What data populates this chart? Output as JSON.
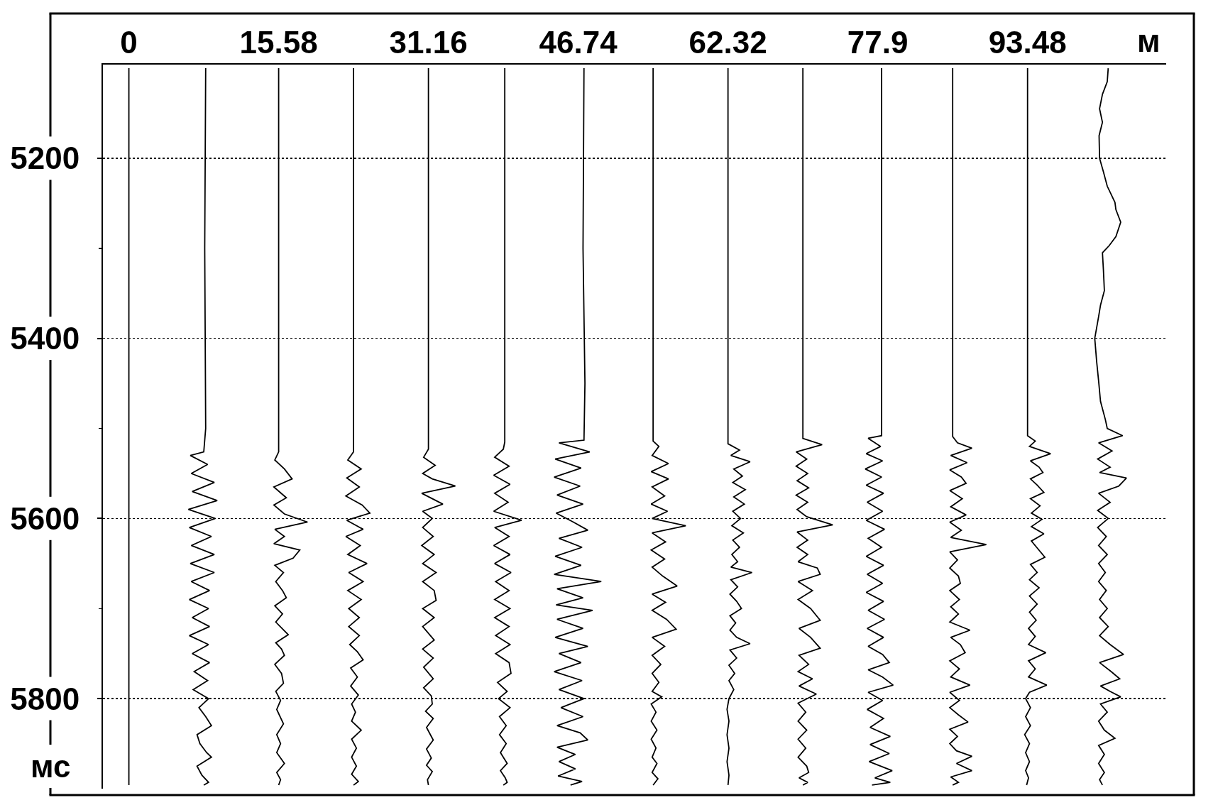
{
  "chart_data": {
    "type": "line",
    "xlabel": "м",
    "ylabel": "мс",
    "xlim": [
      -2.7,
      107.9
    ],
    "ylim": [
      5900,
      5096
    ],
    "xticks": [
      0,
      15.58,
      31.16,
      46.74,
      62.32,
      77.9,
      93.48
    ],
    "yticks": [
      5200,
      {
        "value": 5300,
        "label": null
      },
      5400,
      {
        "value": 5500,
        "label": null
      },
      5600,
      {
        "value": 5700,
        "label": null
      },
      5800
    ],
    "grid": "y",
    "line_style": "solid",
    "series": [
      {
        "color": "#000000",
        "x": [
          0,
          0
        ],
        "values": [
          5100,
          5896
        ]
      },
      {
        "color": "#000000",
        "x": [
          7.99,
          7.89,
          7.99,
          7.79,
          6.39,
          8.19,
          6.49,
          8.89,
          6.59,
          9.19,
          6.19,
          8.99,
          6.29,
          8.59,
          6.49,
          8.89,
          6.39,
          8.89,
          6.49,
          8.39,
          6.29,
          8.29,
          6.59,
          8.39,
          6.29,
          8.29,
          6.59,
          8.39,
          6.79,
          8.19,
          6.69,
          8.29,
          7.29,
          7.99,
          8.59,
          7.09,
          7.39,
          8.09,
          8.59,
          7.09,
          7.59,
          8.29,
          7.79
        ],
        "values": [
          5100,
          5300,
          5500,
          5526,
          5530,
          5540,
          5550,
          5560,
          5570,
          5580,
          5590,
          5600,
          5610,
          5620,
          5630,
          5640,
          5650,
          5660,
          5670,
          5680,
          5690,
          5700,
          5710,
          5720,
          5730,
          5740,
          5750,
          5760,
          5770,
          5780,
          5790,
          5800,
          5810,
          5820,
          5830,
          5840,
          5850,
          5860,
          5865,
          5875,
          5885,
          5893,
          5896
        ]
      },
      {
        "color": "#000000",
        "x": [
          15.58,
          15.58,
          15.18,
          16.18,
          16.98,
          15.08,
          16.38,
          15.08,
          16.18,
          18.58,
          15.18,
          16.18,
          15.08,
          17.78,
          17.08,
          15.18,
          16.08,
          15.28,
          15.98,
          16.38,
          15.18,
          15.98,
          15.28,
          16.58,
          15.28,
          15.88,
          16.18,
          15.18,
          15.88,
          16.08,
          15.28,
          15.78,
          15.38,
          16.08,
          15.38,
          15.78,
          15.38,
          16.18,
          15.38,
          15.78,
          15.58
        ],
        "values": [
          5100,
          5526,
          5535,
          5545,
          5556,
          5565,
          5577,
          5585,
          5595,
          5604,
          5612,
          5620,
          5628,
          5635,
          5644,
          5652,
          5660,
          5670,
          5680,
          5688,
          5697,
          5706,
          5715,
          5729,
          5738,
          5745,
          5752,
          5762,
          5772,
          5783,
          5792,
          5802,
          5812,
          5828,
          5840,
          5850,
          5860,
          5872,
          5882,
          5890,
          5896
        ]
      },
      {
        "color": "#000000",
        "x": [
          23.37,
          23.37,
          22.77,
          24.17,
          22.67,
          23.97,
          22.57,
          24.27,
          25.07,
          22.67,
          24.37,
          22.57,
          24.07,
          22.77,
          24.77,
          22.87,
          24.37,
          22.77,
          24.17,
          22.87,
          23.97,
          22.87,
          23.97,
          22.97,
          23.77,
          24.37,
          23.07,
          23.77,
          23.07,
          23.87,
          23.17,
          23.57,
          23.17,
          24.17,
          23.17,
          23.67,
          23.17,
          23.67,
          23.17,
          23.87,
          23.37
        ],
        "values": [
          5100,
          5526,
          5535,
          5545,
          5555,
          5565,
          5575,
          5585,
          5594,
          5602,
          5612,
          5620,
          5630,
          5640,
          5650,
          5660,
          5670,
          5680,
          5690,
          5700,
          5710,
          5720,
          5730,
          5740,
          5748,
          5757,
          5766,
          5776,
          5786,
          5796,
          5806,
          5815,
          5825,
          5835,
          5845,
          5855,
          5865,
          5875,
          5884,
          5892,
          5896
        ]
      },
      {
        "color": "#000000",
        "x": [
          31.16,
          31.16,
          30.66,
          31.86,
          30.56,
          31.56,
          33.96,
          30.46,
          32.66,
          30.56,
          31.56,
          30.56,
          31.66,
          30.46,
          31.76,
          30.56,
          31.96,
          30.56,
          31.76,
          31.96,
          30.56,
          31.76,
          30.56,
          31.76,
          30.56,
          31.66,
          30.66,
          31.66,
          30.66,
          31.46,
          31.56,
          30.86,
          31.66,
          30.96,
          31.66,
          30.96,
          31.46,
          30.96,
          31.56,
          31.06,
          31.16
        ],
        "values": [
          5100,
          5523,
          5532,
          5541,
          5550,
          5556,
          5564,
          5572,
          5584,
          5592,
          5600,
          5610,
          5620,
          5630,
          5640,
          5650,
          5660,
          5670,
          5680,
          5691,
          5700,
          5710,
          5720,
          5735,
          5745,
          5755,
          5765,
          5778,
          5788,
          5797,
          5806,
          5814,
          5822,
          5832,
          5846,
          5856,
          5866,
          5874,
          5881,
          5890,
          5896
        ]
      },
      {
        "color": "#000000",
        "x": [
          39.1,
          39.1,
          39.1,
          38.95,
          38.05,
          39.55,
          37.95,
          39.65,
          38.05,
          39.45,
          37.95,
          40.85,
          38.05,
          39.55,
          37.95,
          39.65,
          38.05,
          39.75,
          38.15,
          39.55,
          38.05,
          39.65,
          38.05,
          39.55,
          38.15,
          39.65,
          38.15,
          39.55,
          39.75,
          38.35,
          39.35,
          38.45,
          39.65,
          38.55,
          39.25,
          38.55,
          39.25,
          38.65,
          39.35,
          38.65,
          39.15,
          39.35,
          38.95
        ],
        "values": [
          5100,
          5300,
          5515,
          5523,
          5532,
          5542,
          5552,
          5562,
          5572,
          5582,
          5592,
          5602,
          5610,
          5620,
          5630,
          5640,
          5650,
          5660,
          5670,
          5680,
          5690,
          5700,
          5710,
          5720,
          5730,
          5740,
          5750,
          5760,
          5772,
          5782,
          5792,
          5800,
          5810,
          5820,
          5830,
          5840,
          5850,
          5860,
          5872,
          5880,
          5888,
          5893,
          5896
        ]
      },
      {
        "color": "#000000",
        "x": [
          47.34,
          47.24,
          47.44,
          47.34,
          44.74,
          47.94,
          44.34,
          47.04,
          44.24,
          46.94,
          44.54,
          47.24,
          44.44,
          46.24,
          47.74,
          44.74,
          47.14,
          44.34,
          47.04,
          44.24,
          49.14,
          44.54,
          47.24,
          44.44,
          48.24,
          44.54,
          47.24,
          44.34,
          47.74,
          44.74,
          47.04,
          44.24,
          47.14,
          44.74,
          47.34,
          44.94,
          47.24,
          44.54,
          46.94,
          47.74,
          44.54,
          46.44,
          44.74,
          46.44,
          44.64,
          47.14,
          45.94
        ],
        "values": [
          5100,
          5300,
          5450,
          5513,
          5516,
          5526,
          5534,
          5544,
          5554,
          5564,
          5574,
          5584,
          5594,
          5604,
          5613,
          5622,
          5632,
          5642,
          5652,
          5662,
          5670,
          5678,
          5688,
          5696,
          5702,
          5712,
          5722,
          5732,
          5742,
          5750,
          5760,
          5770,
          5780,
          5790,
          5800,
          5810,
          5820,
          5830,
          5838,
          5846,
          5854,
          5862,
          5870,
          5878,
          5886,
          5892,
          5896
        ]
      },
      {
        "color": "#000000",
        "x": [
          54.53,
          54.53,
          55.13,
          54.43,
          56.13,
          54.33,
          56.13,
          54.43,
          55.73,
          54.33,
          56.03,
          54.43,
          57.93,
          54.43,
          55.83,
          54.33,
          55.73,
          54.43,
          55.53,
          57.03,
          54.43,
          55.83,
          54.43,
          55.93,
          56.93,
          54.43,
          55.73,
          54.43,
          55.33,
          54.43,
          55.13,
          54.43,
          55.43,
          54.33,
          54.83,
          54.33,
          54.93,
          54.33,
          54.83,
          54.43,
          54.93,
          54.43,
          55.03,
          54.53
        ],
        "values": [
          5100,
          5514,
          5520,
          5530,
          5539,
          5548,
          5556,
          5565,
          5575,
          5584,
          5592,
          5600,
          5608,
          5616,
          5626,
          5635,
          5645,
          5654,
          5664,
          5675,
          5684,
          5693,
          5702,
          5712,
          5723,
          5732,
          5742,
          5752,
          5762,
          5772,
          5782,
          5792,
          5798,
          5806,
          5815,
          5825,
          5835,
          5845,
          5855,
          5865,
          5872,
          5882,
          5889,
          5896
        ]
      },
      {
        "color": "#000000",
        "x": [
          62.32,
          62.32,
          63.52,
          62.62,
          64.62,
          62.92,
          63.82,
          62.82,
          64.12,
          62.92,
          64.02,
          62.82,
          63.62,
          62.72,
          63.92,
          62.82,
          63.52,
          62.72,
          63.32,
          62.62,
          64.82,
          62.62,
          63.32,
          62.52,
          63.22,
          63.72,
          62.52,
          63.12,
          62.52,
          63.22,
          64.62,
          62.52,
          63.22,
          62.42,
          63.02,
          62.42,
          62.92,
          62.42,
          62.22,
          62.42,
          62.22,
          62.42,
          62.22,
          62.42,
          62.32
        ],
        "values": [
          5100,
          5517,
          5524,
          5530,
          5537,
          5545,
          5553,
          5560,
          5568,
          5576,
          5584,
          5592,
          5600,
          5608,
          5616,
          5624,
          5632,
          5640,
          5648,
          5654,
          5660,
          5668,
          5676,
          5684,
          5692,
          5700,
          5708,
          5716,
          5724,
          5732,
          5739,
          5746,
          5755,
          5763,
          5772,
          5780,
          5790,
          5800,
          5812,
          5825,
          5840,
          5855,
          5870,
          5885,
          5896
        ]
      },
      {
        "color": "#000000",
        "x": [
          70.11,
          70.11,
          72.11,
          69.41,
          70.51,
          69.41,
          70.61,
          69.51,
          70.71,
          69.41,
          70.61,
          69.51,
          70.51,
          73.21,
          69.51,
          70.61,
          69.51,
          70.61,
          69.61,
          71.61,
          71.91,
          69.61,
          71.11,
          69.61,
          70.91,
          71.91,
          69.71,
          70.91,
          71.91,
          69.71,
          70.71,
          69.61,
          71.11,
          69.71,
          71.51,
          69.61,
          70.41,
          69.61,
          70.51,
          69.61,
          70.41,
          69.61,
          70.51,
          70.71,
          69.71,
          70.61,
          70.11
        ],
        "values": [
          5100,
          5511,
          5518,
          5526,
          5534,
          5542,
          5550,
          5558,
          5566,
          5574,
          5582,
          5590,
          5598,
          5607,
          5615,
          5624,
          5632,
          5640,
          5648,
          5655,
          5662,
          5670,
          5680,
          5690,
          5700,
          5713,
          5722,
          5732,
          5744,
          5752,
          5762,
          5770,
          5778,
          5786,
          5795,
          5805,
          5815,
          5825,
          5835,
          5845,
          5855,
          5865,
          5875,
          5882,
          5888,
          5893,
          5896
        ]
      },
      {
        "color": "#000000",
        "x": [
          78.3,
          78.3,
          78.3,
          78.3,
          76.9,
          78.2,
          76.7,
          78.4,
          76.6,
          78.3,
          76.7,
          78.5,
          76.8,
          78.4,
          76.7,
          78.6,
          76.9,
          78.3,
          76.7,
          78.5,
          76.8,
          78.4,
          76.7,
          78.5,
          76.9,
          78.6,
          76.8,
          78.5,
          76.9,
          78.4,
          79.1,
          76.9,
          78.4,
          79.5,
          76.9,
          78.4,
          76.8,
          78.5,
          77.1,
          79.2,
          77.1,
          79.1,
          77.0,
          79.4,
          77.6,
          79.2,
          77.3
        ],
        "values": [
          5100,
          5300,
          5450,
          5508,
          5511,
          5520,
          5528,
          5536,
          5545,
          5554,
          5563,
          5572,
          5582,
          5592,
          5602,
          5612,
          5622,
          5632,
          5642,
          5652,
          5662,
          5672,
          5682,
          5692,
          5702,
          5712,
          5722,
          5732,
          5742,
          5751,
          5760,
          5768,
          5776,
          5785,
          5793,
          5802,
          5812,
          5822,
          5832,
          5842,
          5851,
          5861,
          5870,
          5880,
          5888,
          5893,
          5896
        ]
      },
      {
        "color": "#000000",
        "x": [
          85.69,
          85.69,
          86.19,
          87.69,
          85.49,
          87.19,
          85.39,
          86.59,
          87.09,
          85.39,
          86.69,
          85.49,
          87.09,
          85.39,
          86.59,
          85.49,
          89.19,
          85.39,
          86.19,
          85.39,
          86.29,
          86.49,
          85.39,
          86.39,
          85.49,
          86.29,
          85.39,
          87.49,
          85.49,
          86.49,
          86.99,
          85.39,
          86.39,
          85.49,
          87.49,
          85.39,
          86.39,
          85.39,
          86.29,
          87.29,
          85.39,
          86.19,
          85.39,
          86.09,
          87.69,
          86.09,
          87.69,
          85.49,
          86.29,
          85.69
        ],
        "values": [
          5100,
          5509,
          5516,
          5522,
          5530,
          5538,
          5546,
          5554,
          5561,
          5569,
          5578,
          5587,
          5596,
          5604,
          5613,
          5621,
          5629,
          5637,
          5646,
          5655,
          5664,
          5672,
          5680,
          5690,
          5698,
          5706,
          5715,
          5724,
          5732,
          5740,
          5749,
          5758,
          5767,
          5776,
          5785,
          5793,
          5802,
          5810,
          5818,
          5826,
          5834,
          5842,
          5850,
          5858,
          5864,
          5872,
          5880,
          5887,
          5893,
          5896
        ]
      },
      {
        "color": "#000000",
        "x": [
          93.48,
          93.48,
          94.28,
          93.68,
          95.88,
          93.78,
          94.68,
          95.08,
          93.78,
          94.48,
          95.18,
          93.78,
          94.78,
          93.88,
          94.98,
          93.88,
          95.18,
          93.88,
          94.58,
          95.28,
          93.78,
          94.48,
          93.68,
          94.68,
          93.68,
          94.48,
          93.68,
          94.38,
          93.58,
          94.28,
          93.58,
          95.38,
          93.58,
          94.28,
          93.58,
          95.48,
          93.68,
          93.28,
          93.78,
          93.28,
          93.78,
          93.18,
          93.68,
          93.28,
          93.68,
          93.28,
          93.58,
          93.38
        ],
        "values": [
          5100,
          5508,
          5514,
          5520,
          5528,
          5536,
          5543,
          5549,
          5556,
          5563,
          5571,
          5578,
          5586,
          5594,
          5601,
          5609,
          5617,
          5625,
          5634,
          5643,
          5651,
          5660,
          5668,
          5677,
          5686,
          5695,
          5704,
          5713,
          5722,
          5731,
          5740,
          5749,
          5758,
          5767,
          5776,
          5785,
          5793,
          5800,
          5810,
          5820,
          5830,
          5840,
          5850,
          5860,
          5870,
          5880,
          5888,
          5896
        ]
      },
      {
        "color": "#000000",
        "x": [
          101.87,
          101.77,
          101.27,
          100.97,
          101.27,
          100.92,
          100.97,
          101.37,
          101.77,
          102.57,
          102.67,
          103.17,
          102.67,
          101.97,
          101.27,
          101.37,
          101.47,
          101.07,
          100.87,
          100.47,
          100.67,
          100.87,
          101.07,
          101.57,
          101.77,
          103.37,
          100.87,
          102.27,
          100.77,
          102.07,
          100.97,
          103.77,
          102.97,
          100.87,
          102.07,
          100.77,
          101.87,
          100.77,
          101.67,
          100.87,
          101.77,
          100.87,
          101.57,
          100.87,
          101.67,
          100.97,
          101.77,
          100.97,
          101.87,
          100.97,
          102.07,
          103.47,
          100.97,
          102.17,
          103.07,
          101.07,
          102.07,
          103.17,
          101.07,
          101.77,
          100.87,
          101.47,
          102.57,
          100.87,
          101.47,
          100.87,
          101.47,
          100.97,
          101.27
        ],
        "values": [
          5100,
          5115,
          5129,
          5145,
          5160,
          5175,
          5200,
          5215,
          5231,
          5249,
          5257,
          5271,
          5287,
          5297,
          5305,
          5324,
          5347,
          5363,
          5376,
          5400,
          5426,
          5447,
          5470,
          5490,
          5500,
          5508,
          5516,
          5525,
          5534,
          5543,
          5549,
          5555,
          5564,
          5572,
          5582,
          5591,
          5600,
          5610,
          5620,
          5630,
          5640,
          5650,
          5660,
          5670,
          5680,
          5690,
          5700,
          5710,
          5720,
          5730,
          5740,
          5751,
          5760,
          5770,
          5778,
          5786,
          5792,
          5798,
          5806,
          5815,
          5825,
          5835,
          5844,
          5852,
          5862,
          5872,
          5882,
          5890,
          5896
        ]
      }
    ]
  }
}
